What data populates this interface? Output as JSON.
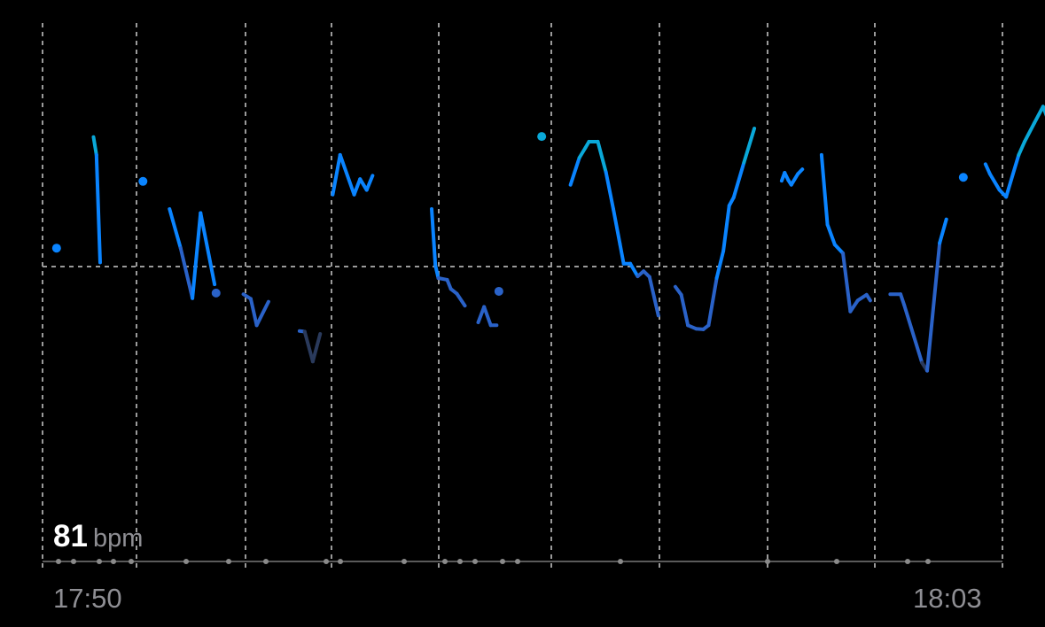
{
  "chart_data": {
    "type": "line",
    "title": "",
    "xlabel": "",
    "ylabel": "",
    "x_ticks": [
      "17:50",
      "18:03"
    ],
    "reference_value": 81,
    "reference_label_value": "81",
    "reference_label_unit": "bpm",
    "grid": true,
    "colors": {
      "low": "#2a3a5c",
      "mid": "#2a62c8",
      "high": "#0a84ff",
      "top": "#0aa8d8",
      "grid": "#9a9a9a"
    },
    "segments": [
      [
        [
          0.19,
          84.2
        ]
      ],
      [
        [
          0.69,
          103.5
        ],
        [
          0.73,
          100.4
        ],
        [
          0.78,
          81.7
        ]
      ],
      [
        [
          1.36,
          95.8
        ]
      ],
      [
        [
          1.72,
          91.0
        ],
        [
          1.87,
          84.2
        ],
        [
          2.03,
          75.5
        ],
        [
          2.14,
          90.3
        ],
        [
          2.33,
          77.9
        ]
      ],
      [
        [
          2.35,
          76.4
        ]
      ],
      [
        [
          2.72,
          76.2
        ],
        [
          2.82,
          75.4
        ],
        [
          2.9,
          70.8
        ],
        [
          3.06,
          74.9
        ]
      ],
      [
        [
          3.48,
          69.8
        ],
        [
          3.55,
          69.7
        ],
        [
          3.66,
          64.5
        ],
        [
          3.76,
          69.3
        ]
      ],
      [
        [
          3.93,
          93.5
        ],
        [
          4.03,
          100.4
        ],
        [
          4.22,
          93.5
        ],
        [
          4.3,
          96.2
        ],
        [
          4.39,
          94.3
        ],
        [
          4.47,
          96.8
        ]
      ],
      [
        [
          5.27,
          91.0
        ],
        [
          5.32,
          81.2
        ],
        [
          5.36,
          79.0
        ],
        [
          5.48,
          78.7
        ],
        [
          5.53,
          77.1
        ],
        [
          5.61,
          76.3
        ],
        [
          5.72,
          74.2
        ]
      ],
      [
        [
          5.9,
          71.3
        ],
        [
          5.98,
          74.0
        ],
        [
          6.07,
          70.8
        ],
        [
          6.15,
          70.8
        ]
      ],
      [
        [
          6.18,
          76.7
        ]
      ],
      [
        [
          6.76,
          103.6
        ]
      ],
      [
        [
          7.15,
          95.2
        ],
        [
          7.27,
          99.9
        ],
        [
          7.35,
          101.6
        ],
        [
          7.4,
          102.7
        ],
        [
          7.52,
          102.7
        ],
        [
          7.63,
          97.4
        ],
        [
          7.73,
          91.0
        ],
        [
          7.82,
          84.9
        ],
        [
          7.87,
          81.5
        ],
        [
          7.96,
          81.5
        ],
        [
          8.06,
          79.3
        ],
        [
          8.14,
          80.2
        ],
        [
          8.22,
          79.2
        ],
        [
          8.34,
          72.5
        ]
      ],
      [
        [
          8.57,
          77.5
        ],
        [
          8.65,
          76.1
        ],
        [
          8.74,
          70.8
        ],
        [
          8.85,
          70.2
        ],
        [
          8.95,
          70.1
        ],
        [
          9.02,
          70.8
        ],
        [
          9.13,
          79.0
        ],
        [
          9.22,
          83.7
        ],
        [
          9.3,
          91.6
        ],
        [
          9.36,
          93.0
        ],
        [
          9.5,
          99.1
        ],
        [
          9.64,
          105.0
        ]
      ],
      [
        [
          10.01,
          95.9
        ],
        [
          10.05,
          97.3
        ],
        [
          10.1,
          96.0
        ],
        [
          10.14,
          95.2
        ],
        [
          10.23,
          97.1
        ],
        [
          10.29,
          97.9
        ]
      ],
      [
        [
          10.55,
          100.4
        ],
        [
          10.63,
          88.3
        ],
        [
          10.73,
          84.8
        ],
        [
          10.84,
          83.3
        ],
        [
          10.94,
          73.2
        ],
        [
          11.04,
          75.1
        ],
        [
          11.16,
          76.1
        ],
        [
          11.21,
          75.1
        ]
      ],
      [
        [
          11.48,
          76.2
        ],
        [
          11.62,
          76.2
        ],
        [
          11.67,
          74.3
        ],
        [
          11.91,
          64.3
        ],
        [
          11.98,
          62.9
        ],
        [
          12.15,
          85.1
        ],
        [
          12.24,
          89.2
        ]
      ],
      [
        [
          12.47,
          96.5
        ]
      ],
      [
        [
          12.77,
          98.8
        ],
        [
          12.83,
          97.1
        ],
        [
          12.96,
          94.3
        ],
        [
          13.05,
          93.1
        ],
        [
          13.22,
          100.4
        ],
        [
          13.3,
          102.7
        ],
        [
          13.43,
          105.9
        ],
        [
          13.55,
          108.8
        ],
        [
          13.6,
          107.1
        ]
      ]
    ]
  }
}
